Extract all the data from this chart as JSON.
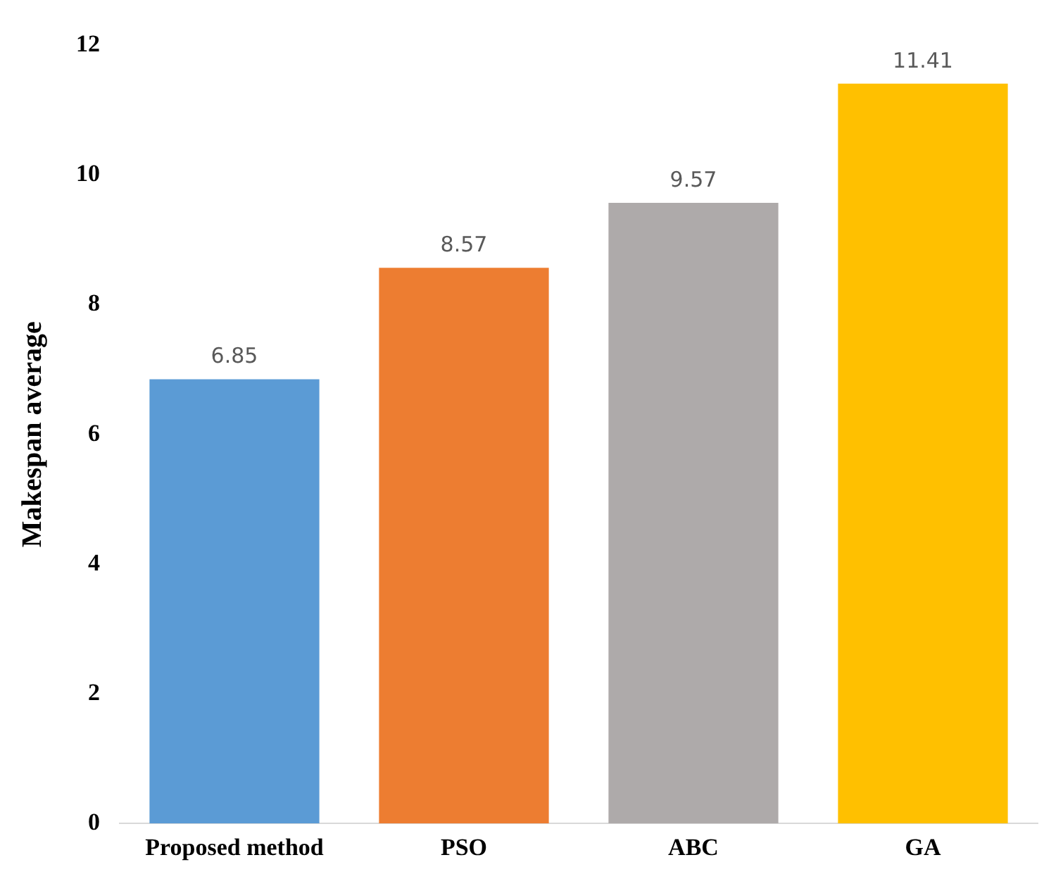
{
  "chart_data": {
    "type": "bar",
    "ylabel": "Makespan average",
    "categories": [
      "Proposed method",
      "PSO",
      "ABC",
      "GA"
    ],
    "values": [
      6.85,
      8.57,
      9.57,
      11.41
    ],
    "colors": [
      "#5b9bd5",
      "#ed7d31",
      "#aeaaaa",
      "#ffc000"
    ],
    "ylim": [
      0,
      12
    ],
    "yticks": [
      0,
      2,
      4,
      6,
      8,
      10,
      12
    ],
    "grid": false,
    "data_labels": true
  }
}
